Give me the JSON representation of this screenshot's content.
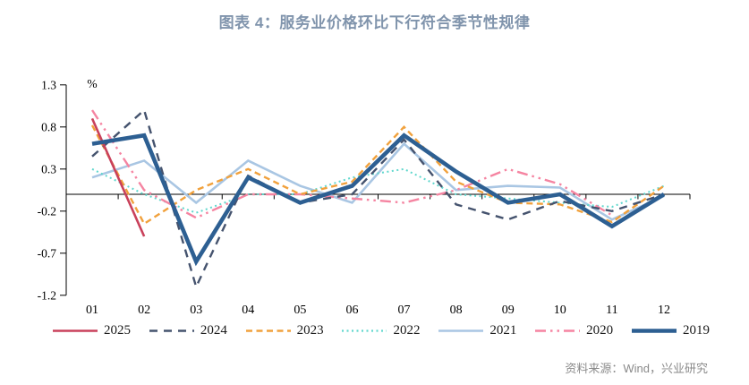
{
  "title": "图表 4：服务业价格环比下行符合季节性规律",
  "source": "资料来源：Wind，兴业研究",
  "colors": {
    "title_text": "#8094ac",
    "axis": "#000000",
    "source_text": "#8a8a8a"
  },
  "chart_data": {
    "type": "line",
    "title": "图表 4：服务业价格环比下行符合季节性规律",
    "unit": "%",
    "xlabel": "",
    "ylabel": "%",
    "ylim": [
      -1.2,
      1.3
    ],
    "grid": false,
    "legend_position": "bottom",
    "y_ticks": [
      "1.3",
      "0.8",
      "0.3",
      "-0.2",
      "-0.7",
      "-1.2"
    ],
    "y_tick_values": [
      1.3,
      0.8,
      0.3,
      -0.2,
      -0.7,
      -1.2
    ],
    "categories": [
      "01",
      "02",
      "03",
      "04",
      "05",
      "06",
      "07",
      "08",
      "09",
      "10",
      "11",
      "12"
    ],
    "series": [
      {
        "name": "2025",
        "color": "#c9415b",
        "style": "solid",
        "width": 2.6,
        "values": [
          0.9,
          -0.5,
          null,
          null,
          null,
          null,
          null,
          null,
          null,
          null,
          null,
          null
        ]
      },
      {
        "name": "2024",
        "color": "#45536e",
        "style": "long-dash",
        "width": 2.4,
        "values": [
          0.45,
          1.0,
          -1.1,
          0.22,
          -0.1,
          0.0,
          0.65,
          -0.12,
          -0.3,
          -0.08,
          -0.2,
          0.0
        ]
      },
      {
        "name": "2023",
        "color": "#f1a13c",
        "style": "dash",
        "width": 2.4,
        "values": [
          0.82,
          -0.35,
          0.05,
          0.3,
          0.0,
          0.15,
          0.8,
          0.15,
          -0.1,
          -0.12,
          -0.33,
          0.1
        ]
      },
      {
        "name": "2022",
        "color": "#5fd7cd",
        "style": "dot",
        "width": 2.0,
        "values": [
          0.3,
          0.0,
          -0.22,
          0.0,
          0.0,
          0.2,
          0.3,
          0.0,
          -0.05,
          -0.1,
          -0.15,
          0.1
        ]
      },
      {
        "name": "2021",
        "color": "#a9c6e3",
        "style": "solid",
        "width": 2.6,
        "values": [
          0.2,
          0.4,
          -0.1,
          0.4,
          0.1,
          -0.1,
          0.6,
          0.05,
          0.1,
          0.08,
          -0.3,
          -0.02
        ]
      },
      {
        "name": "2020",
        "color": "#f584a1",
        "style": "dash-dot",
        "width": 2.4,
        "values": [
          1.0,
          0.05,
          -0.28,
          0.0,
          0.0,
          -0.05,
          -0.1,
          0.05,
          0.3,
          0.12,
          -0.25,
          null
        ]
      },
      {
        "name": "2019",
        "color": "#2d5f92",
        "style": "solid",
        "width": 4.6,
        "values": [
          0.6,
          0.7,
          -0.8,
          0.2,
          -0.1,
          0.1,
          0.7,
          0.27,
          -0.1,
          0.0,
          -0.38,
          0.0
        ]
      }
    ]
  }
}
